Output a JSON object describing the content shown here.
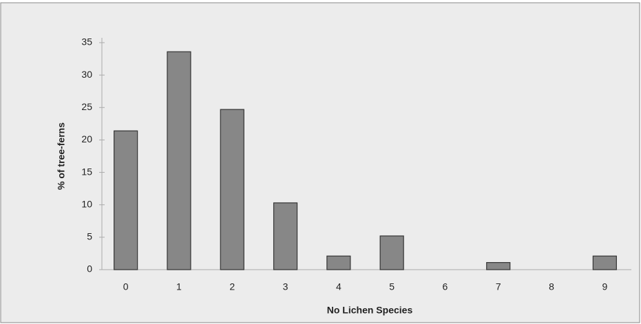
{
  "chart_data": {
    "type": "bar",
    "x_label": "No  Lichen Species",
    "y_label": "% of tree-ferns",
    "categories": [
      "0",
      "1",
      "2",
      "3",
      "4",
      "5",
      "6",
      "7",
      "8",
      "9"
    ],
    "values": [
      21.4,
      33.6,
      24.7,
      10.3,
      2.1,
      5.2,
      0,
      1.1,
      0,
      2.1
    ],
    "color": "#878787",
    "ylim": [
      0,
      35
    ],
    "yticks": [
      0,
      5,
      10,
      15,
      20,
      25,
      30,
      35
    ],
    "grid": false
  }
}
